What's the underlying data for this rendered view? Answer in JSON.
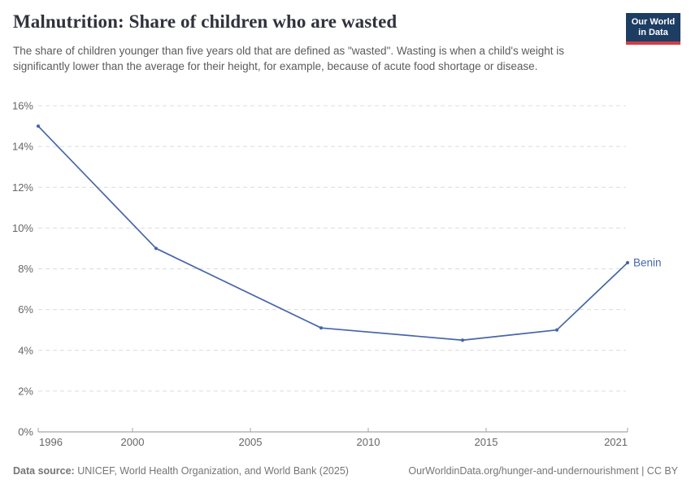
{
  "header": {
    "title": "Malnutrition: Share of children who are wasted",
    "subtitle": "The share of children younger than five years old that are defined as \"wasted\". Wasting is when a child's weight is significantly lower than the average for their height, for example, because of acute food shortage or disease.",
    "logo": {
      "line1": "Our World",
      "line2": "in Data"
    }
  },
  "chart_data": {
    "type": "line",
    "title": "Malnutrition: Share of children who are wasted",
    "series": [
      {
        "name": "Benin",
        "x": [
          1996,
          2001,
          2008,
          2014,
          2018,
          2021
        ],
        "values": [
          15.0,
          9.0,
          5.1,
          4.5,
          5.0,
          8.3
        ]
      }
    ],
    "end_label": "Benin",
    "xlim": [
      1996,
      2021
    ],
    "ylim": [
      0,
      16
    ],
    "x_ticks": [
      1996,
      2000,
      2005,
      2010,
      2015,
      2021
    ],
    "x_tick_labels": [
      "1996",
      "2000",
      "2005",
      "2010",
      "2015",
      "2021"
    ],
    "y_ticks": [
      0,
      2,
      4,
      6,
      8,
      10,
      12,
      14,
      16
    ],
    "y_tick_labels": [
      "0%",
      "2%",
      "4%",
      "6%",
      "8%",
      "10%",
      "12%",
      "14%",
      "16%"
    ],
    "grid": "horizontal-dashed",
    "legend_position": "end-of-line",
    "colors": {
      "line": "#4665aa",
      "grid": "#dcdcdc",
      "axis": "#8f8f8f",
      "tick": "#a5a5a5",
      "tick_label": "#666666"
    }
  },
  "footer": {
    "datasource_label": "Data source:",
    "datasource_text": "UNICEF, World Health Organization, and World Bank (2025)",
    "link_text": "OurWorldinData.org/hunger-and-undernourishment | CC BY"
  }
}
